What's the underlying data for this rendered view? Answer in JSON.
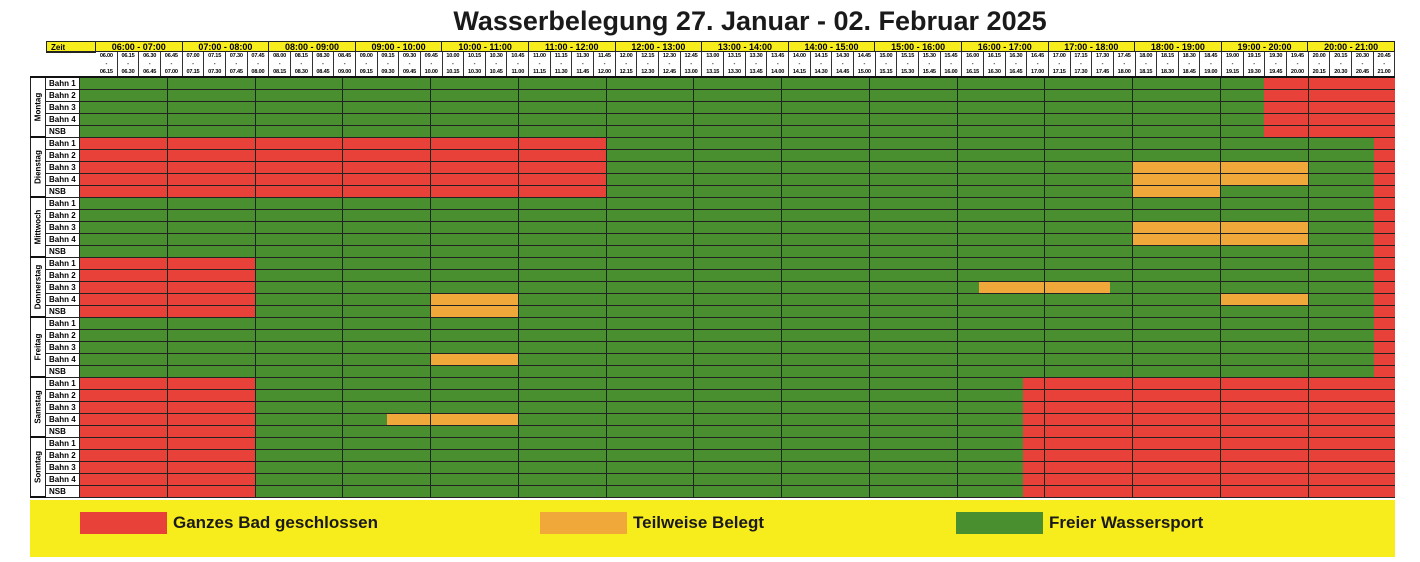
{
  "title": "Wasserbelegung 27. Januar - 02. Februar 2025",
  "zeit_label": "Zeit",
  "hours": [
    "06:00 - 07:00",
    "07:00 - 08:00",
    "08:00 - 09:00",
    "09:00 - 10:00",
    "10:00 - 11:00",
    "11:00 - 12:00",
    "12:00 - 13:00",
    "13:00 - 14:00",
    "14:00 - 15:00",
    "15:00 - 16:00",
    "16:00 - 17:00",
    "17:00 - 18:00",
    "18:00 - 19:00",
    "19:00 - 20:00",
    "20:00 - 21:00"
  ],
  "slots": [
    [
      "06.00",
      "06.15"
    ],
    [
      "06.15",
      "06.30"
    ],
    [
      "06.30",
      "06.45"
    ],
    [
      "06.45",
      "07.00"
    ],
    [
      "07.00",
      "07.15"
    ],
    [
      "07.15",
      "07.30"
    ],
    [
      "07.30",
      "07.45"
    ],
    [
      "07.45",
      "08.00"
    ],
    [
      "08.00",
      "08.15"
    ],
    [
      "08.15",
      "08.30"
    ],
    [
      "08.30",
      "08.45"
    ],
    [
      "08.45",
      "09.00"
    ],
    [
      "09.00",
      "09.15"
    ],
    [
      "09.15",
      "09.30"
    ],
    [
      "09.30",
      "09.45"
    ],
    [
      "09.45",
      "10.00"
    ],
    [
      "10.00",
      "10.15"
    ],
    [
      "10.15",
      "10.30"
    ],
    [
      "10.30",
      "10.45"
    ],
    [
      "10.45",
      "11.00"
    ],
    [
      "11.00",
      "11.15"
    ],
    [
      "11.15",
      "11.30"
    ],
    [
      "11.30",
      "11.45"
    ],
    [
      "11.45",
      "12.00"
    ],
    [
      "12.00",
      "12.15"
    ],
    [
      "12.15",
      "12.30"
    ],
    [
      "12.30",
      "12.45"
    ],
    [
      "12.45",
      "13.00"
    ],
    [
      "13.00",
      "13.15"
    ],
    [
      "13.15",
      "13.30"
    ],
    [
      "13.30",
      "13.45"
    ],
    [
      "13.45",
      "14.00"
    ],
    [
      "14.00",
      "14.15"
    ],
    [
      "14.15",
      "14.30"
    ],
    [
      "14.30",
      "14.45"
    ],
    [
      "14.45",
      "15.00"
    ],
    [
      "15.00",
      "15.15"
    ],
    [
      "15.15",
      "15.30"
    ],
    [
      "15.30",
      "15.45"
    ],
    [
      "15.45",
      "16.00"
    ],
    [
      "16.00",
      "16.15"
    ],
    [
      "16.15",
      "16.30"
    ],
    [
      "16.30",
      "16.45"
    ],
    [
      "16.45",
      "17.00"
    ],
    [
      "17.00",
      "17.15"
    ],
    [
      "17.15",
      "17.30"
    ],
    [
      "17.30",
      "17.45"
    ],
    [
      "17.45",
      "18.00"
    ],
    [
      "18.00",
      "18.15"
    ],
    [
      "18.15",
      "18.30"
    ],
    [
      "18.30",
      "18.45"
    ],
    [
      "18.45",
      "19.00"
    ],
    [
      "19.00",
      "19.15"
    ],
    [
      "19.15",
      "19.30"
    ],
    [
      "19.30",
      "19.45"
    ],
    [
      "19.45",
      "20.00"
    ],
    [
      "20.00",
      "20.15"
    ],
    [
      "20.15",
      "20.30"
    ],
    [
      "20.30",
      "20.45"
    ],
    [
      "20.45",
      "21.00"
    ]
  ],
  "lanes": [
    "Bahn 1",
    "Bahn 2",
    "Bahn 3",
    "Bahn 4",
    "NSB"
  ],
  "days": [
    {
      "name": "Montag",
      "rows": [
        [
          [
            "G",
            54
          ],
          [
            "R",
            6
          ]
        ],
        [
          [
            "G",
            54
          ],
          [
            "R",
            6
          ]
        ],
        [
          [
            "G",
            54
          ],
          [
            "R",
            6
          ]
        ],
        [
          [
            "G",
            54
          ],
          [
            "R",
            6
          ]
        ],
        [
          [
            "G",
            54
          ],
          [
            "R",
            6
          ]
        ]
      ]
    },
    {
      "name": "Dienstag",
      "rows": [
        [
          [
            "R",
            24
          ],
          [
            "G",
            35
          ],
          [
            "R",
            1
          ]
        ],
        [
          [
            "R",
            24
          ],
          [
            "G",
            35
          ],
          [
            "R",
            1
          ]
        ],
        [
          [
            "R",
            24
          ],
          [
            "G",
            24
          ],
          [
            "O",
            8
          ],
          [
            "G",
            3
          ],
          [
            "R",
            1
          ]
        ],
        [
          [
            "R",
            24
          ],
          [
            "G",
            24
          ],
          [
            "O",
            8
          ],
          [
            "G",
            3
          ],
          [
            "R",
            1
          ]
        ],
        [
          [
            "R",
            24
          ],
          [
            "G",
            24
          ],
          [
            "O",
            4
          ],
          [
            "G",
            7
          ],
          [
            "R",
            1
          ]
        ]
      ]
    },
    {
      "name": "Mittwoch",
      "rows": [
        [
          [
            "G",
            59
          ],
          [
            "R",
            1
          ]
        ],
        [
          [
            "G",
            59
          ],
          [
            "R",
            1
          ]
        ],
        [
          [
            "G",
            48
          ],
          [
            "O",
            8
          ],
          [
            "G",
            3
          ],
          [
            "R",
            1
          ]
        ],
        [
          [
            "G",
            48
          ],
          [
            "O",
            8
          ],
          [
            "G",
            3
          ],
          [
            "R",
            1
          ]
        ],
        [
          [
            "G",
            59
          ],
          [
            "R",
            1
          ]
        ]
      ]
    },
    {
      "name": "Donnerstag",
      "rows": [
        [
          [
            "R",
            8
          ],
          [
            "G",
            51
          ],
          [
            "R",
            1
          ]
        ],
        [
          [
            "R",
            8
          ],
          [
            "G",
            51
          ],
          [
            "R",
            1
          ]
        ],
        [
          [
            "R",
            8
          ],
          [
            "G",
            33
          ],
          [
            "O",
            6
          ],
          [
            "G",
            12
          ],
          [
            "R",
            1
          ]
        ],
        [
          [
            "R",
            8
          ],
          [
            "G",
            8
          ],
          [
            "O",
            4
          ],
          [
            "G",
            32
          ],
          [
            "O",
            4
          ],
          [
            "G",
            3
          ],
          [
            "R",
            1
          ]
        ],
        [
          [
            "R",
            8
          ],
          [
            "G",
            8
          ],
          [
            "O",
            4
          ],
          [
            "G",
            39
          ],
          [
            "R",
            1
          ]
        ]
      ]
    },
    {
      "name": "Freitag",
      "rows": [
        [
          [
            "G",
            59
          ],
          [
            "R",
            1
          ]
        ],
        [
          [
            "G",
            59
          ],
          [
            "R",
            1
          ]
        ],
        [
          [
            "G",
            59
          ],
          [
            "R",
            1
          ]
        ],
        [
          [
            "G",
            16
          ],
          [
            "O",
            4
          ],
          [
            "G",
            39
          ],
          [
            "R",
            1
          ]
        ],
        [
          [
            "G",
            59
          ],
          [
            "R",
            1
          ]
        ]
      ]
    },
    {
      "name": "Samstag",
      "rows": [
        [
          [
            "R",
            8
          ],
          [
            "G",
            35
          ],
          [
            "R",
            17
          ]
        ],
        [
          [
            "R",
            8
          ],
          [
            "G",
            35
          ],
          [
            "R",
            17
          ]
        ],
        [
          [
            "R",
            8
          ],
          [
            "G",
            35
          ],
          [
            "R",
            17
          ]
        ],
        [
          [
            "R",
            8
          ],
          [
            "G",
            6
          ],
          [
            "O",
            6
          ],
          [
            "G",
            23
          ],
          [
            "R",
            17
          ]
        ],
        [
          [
            "R",
            8
          ],
          [
            "G",
            35
          ],
          [
            "R",
            17
          ]
        ]
      ]
    },
    {
      "name": "Sonntag",
      "rows": [
        [
          [
            "R",
            8
          ],
          [
            "G",
            35
          ],
          [
            "R",
            17
          ]
        ],
        [
          [
            "R",
            8
          ],
          [
            "G",
            35
          ],
          [
            "R",
            17
          ]
        ],
        [
          [
            "R",
            8
          ],
          [
            "G",
            35
          ],
          [
            "R",
            17
          ]
        ],
        [
          [
            "R",
            8
          ],
          [
            "G",
            35
          ],
          [
            "R",
            17
          ]
        ],
        [
          [
            "R",
            8
          ],
          [
            "G",
            35
          ],
          [
            "R",
            17
          ]
        ]
      ]
    }
  ],
  "legend": [
    {
      "code": "R",
      "label": "Ganzes Bad geschlossen",
      "color": "#e8413a"
    },
    {
      "code": "O",
      "label": "Teilweise Belegt",
      "color": "#f0a83a"
    },
    {
      "code": "G",
      "label": "Freier Wassersport",
      "color": "#4a8f2f"
    }
  ]
}
